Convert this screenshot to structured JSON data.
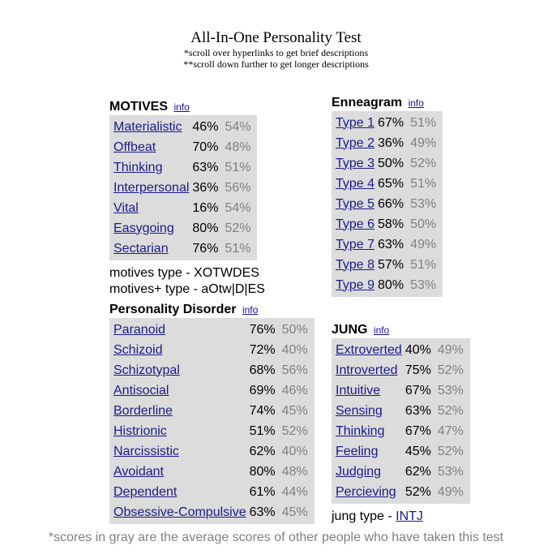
{
  "header": {
    "title": "All-In-One Personality Test",
    "note1": "*scroll over hyperlinks to get brief descriptions",
    "note2": "**scroll down further to get longer descriptions"
  },
  "info_label": "info",
  "motives": {
    "title": "MOTIVES",
    "rows": [
      {
        "name": "Materialistic",
        "you": "46%",
        "avg": "54%"
      },
      {
        "name": "Offbeat",
        "you": "70%",
        "avg": "48%"
      },
      {
        "name": "Thinking",
        "you": "63%",
        "avg": "51%"
      },
      {
        "name": "Interpersonal",
        "you": "36%",
        "avg": "56%"
      },
      {
        "name": "Vital",
        "you": "16%",
        "avg": "54%"
      },
      {
        "name": "Easygoing",
        "you": "80%",
        "avg": "52%"
      },
      {
        "name": "Sectarian",
        "you": "76%",
        "avg": "51%"
      }
    ],
    "type_line": "motives type - XOTWDES",
    "type_plus_line": "motives+ type - aOtw|D|ES"
  },
  "enneagram": {
    "title": "Enneagram",
    "rows": [
      {
        "name": "Type 1",
        "you": "67%",
        "avg": "51%"
      },
      {
        "name": "Type 2",
        "you": "36%",
        "avg": "49%"
      },
      {
        "name": "Type 3",
        "you": "50%",
        "avg": "52%"
      },
      {
        "name": "Type 4",
        "you": "65%",
        "avg": "51%"
      },
      {
        "name": "Type 5",
        "you": "66%",
        "avg": "53%"
      },
      {
        "name": "Type 6",
        "you": "58%",
        "avg": "50%"
      },
      {
        "name": "Type 7",
        "you": "63%",
        "avg": "49%"
      },
      {
        "name": "Type 8",
        "you": "57%",
        "avg": "51%"
      },
      {
        "name": "Type 9",
        "you": "80%",
        "avg": "53%"
      }
    ]
  },
  "disorder": {
    "title": "Personality Disorder",
    "rows": [
      {
        "name": "Paranoid",
        "you": "76%",
        "avg": "50%"
      },
      {
        "name": "Schizoid",
        "you": "72%",
        "avg": "40%"
      },
      {
        "name": "Schizotypal",
        "you": "68%",
        "avg": "56%"
      },
      {
        "name": "Antisocial",
        "you": "69%",
        "avg": "46%"
      },
      {
        "name": "Borderline",
        "you": "74%",
        "avg": "45%"
      },
      {
        "name": "Histrionic",
        "you": "51%",
        "avg": "52%"
      },
      {
        "name": "Narcissistic",
        "you": "62%",
        "avg": "40%"
      },
      {
        "name": "Avoidant",
        "you": "80%",
        "avg": "48%"
      },
      {
        "name": "Dependent",
        "you": "61%",
        "avg": "44%"
      },
      {
        "name": "Obsessive-Compulsive",
        "you": "63%",
        "avg": "45%"
      }
    ]
  },
  "jung": {
    "title": "JUNG",
    "rows": [
      {
        "name": "Extroverted",
        "you": "40%",
        "avg": "49%"
      },
      {
        "name": "Introverted",
        "you": "75%",
        "avg": "52%"
      },
      {
        "name": "Intuitive",
        "you": "67%",
        "avg": "53%"
      },
      {
        "name": "Sensing",
        "you": "63%",
        "avg": "52%"
      },
      {
        "name": "Thinking",
        "you": "67%",
        "avg": "47%"
      },
      {
        "name": "Feeling",
        "you": "45%",
        "avg": "52%"
      },
      {
        "name": "Judging",
        "you": "62%",
        "avg": "53%"
      },
      {
        "name": "Percieving",
        "you": "52%",
        "avg": "49%"
      }
    ],
    "type_prefix": "jung type - ",
    "type_value": "INTJ"
  },
  "footer": "*scores in gray are the average scores of other people who have taken this test"
}
